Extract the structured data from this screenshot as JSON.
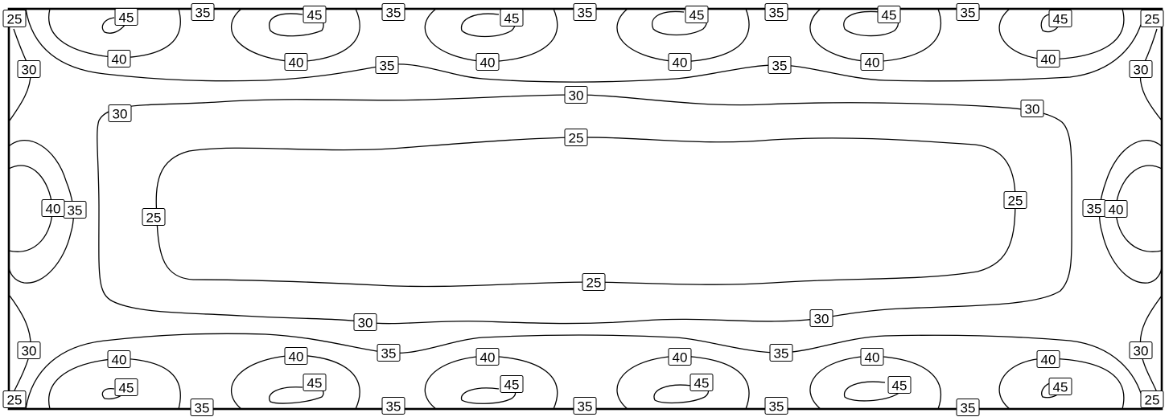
{
  "chart_data": {
    "type": "contour",
    "levels": [
      25,
      30,
      35,
      40,
      45
    ],
    "level_labels": {
      "l25": "25",
      "l30": "30",
      "l35": "35",
      "l40": "40",
      "l45": "45"
    },
    "peaks": {
      "top_row_count": 6,
      "bottom_row_count": 6,
      "side_count": 2,
      "peak_level": "45",
      "center_minimum_below": "25"
    },
    "labels": [
      {
        "id": "lb-25-tl",
        "level": "l25"
      },
      {
        "id": "lb-25-tr",
        "level": "l25"
      },
      {
        "id": "lb-25-bl",
        "level": "l25"
      },
      {
        "id": "lb-25-br",
        "level": "l25"
      },
      {
        "id": "lb-25-top",
        "level": "l25"
      },
      {
        "id": "lb-25-bottom",
        "level": "l25"
      },
      {
        "id": "lb-25-left",
        "level": "l25"
      },
      {
        "id": "lb-25-right",
        "level": "l25"
      },
      {
        "id": "lb-30-left-top",
        "level": "l30"
      },
      {
        "id": "lb-30-left-bot",
        "level": "l30"
      },
      {
        "id": "lb-30-right-top",
        "level": "l30"
      },
      {
        "id": "lb-30-right-bot",
        "level": "l30"
      },
      {
        "id": "lb-30-ring-tl",
        "level": "l30"
      },
      {
        "id": "lb-30-ring-top",
        "level": "l30"
      },
      {
        "id": "lb-30-ring-tr",
        "level": "l30"
      },
      {
        "id": "lb-30-ring-bl",
        "level": "l30"
      },
      {
        "id": "lb-30-ring-br",
        "level": "l30"
      },
      {
        "id": "lb-35-top-1",
        "level": "l35"
      },
      {
        "id": "lb-35-top-2",
        "level": "l35"
      },
      {
        "id": "lb-35-top-3",
        "level": "l35"
      },
      {
        "id": "lb-35-top-4",
        "level": "l35"
      },
      {
        "id": "lb-35-top-5",
        "level": "l35"
      },
      {
        "id": "lb-35-bot-1",
        "level": "l35"
      },
      {
        "id": "lb-35-bot-2",
        "level": "l35"
      },
      {
        "id": "lb-35-bot-3",
        "level": "l35"
      },
      {
        "id": "lb-35-bot-4",
        "level": "l35"
      },
      {
        "id": "lb-35-bot-5",
        "level": "l35"
      },
      {
        "id": "lb-35-wave-top-1",
        "level": "l35"
      },
      {
        "id": "lb-35-wave-top-2",
        "level": "l35"
      },
      {
        "id": "lb-35-wave-bot-1",
        "level": "l35"
      },
      {
        "id": "lb-35-wave-bot-2",
        "level": "l35"
      },
      {
        "id": "lb-35-left",
        "level": "l35"
      },
      {
        "id": "lb-35-right",
        "level": "l35"
      },
      {
        "id": "lb-40-top-1",
        "level": "l40"
      },
      {
        "id": "lb-40-top-2",
        "level": "l40"
      },
      {
        "id": "lb-40-top-3",
        "level": "l40"
      },
      {
        "id": "lb-40-top-4",
        "level": "l40"
      },
      {
        "id": "lb-40-top-5",
        "level": "l40"
      },
      {
        "id": "lb-40-top-6",
        "level": "l40"
      },
      {
        "id": "lb-40-bot-1",
        "level": "l40"
      },
      {
        "id": "lb-40-bot-2",
        "level": "l40"
      },
      {
        "id": "lb-40-bot-3",
        "level": "l40"
      },
      {
        "id": "lb-40-bot-4",
        "level": "l40"
      },
      {
        "id": "lb-40-bot-5",
        "level": "l40"
      },
      {
        "id": "lb-40-bot-6",
        "level": "l40"
      },
      {
        "id": "lb-40-left",
        "level": "l40"
      },
      {
        "id": "lb-40-right",
        "level": "l40"
      },
      {
        "id": "lb-45-top-1",
        "level": "l45"
      },
      {
        "id": "lb-45-top-2",
        "level": "l45"
      },
      {
        "id": "lb-45-top-3",
        "level": "l45"
      },
      {
        "id": "lb-45-top-4",
        "level": "l45"
      },
      {
        "id": "lb-45-top-5",
        "level": "l45"
      },
      {
        "id": "lb-45-top-6",
        "level": "l45"
      },
      {
        "id": "lb-45-bot-1",
        "level": "l45"
      },
      {
        "id": "lb-45-bot-2",
        "level": "l45"
      },
      {
        "id": "lb-45-bot-3",
        "level": "l45"
      },
      {
        "id": "lb-45-bot-4",
        "level": "l45"
      },
      {
        "id": "lb-45-bot-5",
        "level": "l45"
      },
      {
        "id": "lb-45-bot-6",
        "level": "l45"
      }
    ],
    "grid": false,
    "legend": "none",
    "line_color": "#000000",
    "background_color": "#ffffff"
  }
}
